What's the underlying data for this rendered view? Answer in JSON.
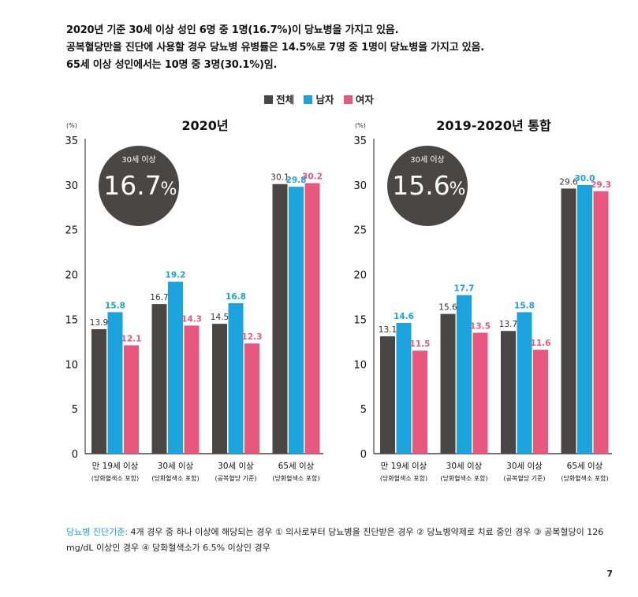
{
  "intro": {
    "line1": "2020년 기준 30세 이상 성인 6명 중 1명(16.7%)이 당뇨병을 가지고 있음.",
    "line2": "공복혈당만을 진단에 사용할 경우 당뇨병 유병률은 14.5%로 7명 중 1명이 당뇨병을 가지고 있음.",
    "line3": "65세 이상 성인에서는 10명 중 3명(30.1%)임."
  },
  "legend": [
    {
      "label": "전체",
      "color": "#4a4646"
    },
    {
      "label": "남자",
      "color": "#1ba3dd"
    },
    {
      "label": "여자",
      "color": "#e8577e"
    }
  ],
  "chart_data": [
    {
      "type": "bar",
      "title": "2020년",
      "ylabel": "(%)",
      "ylim": [
        0,
        35
      ],
      "yticks": [
        0,
        5,
        10,
        15,
        20,
        25,
        30,
        35
      ],
      "grid": false,
      "legend_position": "top-center",
      "highlight": {
        "label": "30세 이상",
        "value": "16.7",
        "unit": "%"
      },
      "categories": [
        {
          "label": "만 19세 이상",
          "sub": "(당화혈색소 포함)"
        },
        {
          "label": "30세 이상",
          "sub": "(당화혈색소 포함)"
        },
        {
          "label": "30세 이상",
          "sub": "(공복혈당 기준)"
        },
        {
          "label": "65세 이상",
          "sub": "(당화혈색소 포함)"
        }
      ],
      "series": [
        {
          "name": "전체",
          "color": "#4a4646",
          "label_color": "#333333",
          "values": [
            13.9,
            16.7,
            14.5,
            30.1
          ]
        },
        {
          "name": "남자",
          "color": "#1ba3dd",
          "label_color": "#1ba3dd",
          "values": [
            15.8,
            19.2,
            16.8,
            29.8
          ]
        },
        {
          "name": "여자",
          "color": "#e8577e",
          "label_color": "#e8577e",
          "values": [
            12.1,
            14.3,
            12.3,
            30.2
          ]
        }
      ]
    },
    {
      "type": "bar",
      "title": "2019-2020년 통합",
      "ylabel": "(%)",
      "ylim": [
        0,
        35
      ],
      "yticks": [
        0,
        5,
        10,
        15,
        20,
        25,
        30,
        35
      ],
      "grid": false,
      "legend_position": "top-center",
      "highlight": {
        "label": "30세 이상",
        "value": "15.6",
        "unit": "%"
      },
      "categories": [
        {
          "label": "만 19세 이상",
          "sub": "(당화혈색소 포함)"
        },
        {
          "label": "30세 이상",
          "sub": "(당화혈색소 포함)"
        },
        {
          "label": "30세 이상",
          "sub": "(공복혈당 기준)"
        },
        {
          "label": "65세 이상",
          "sub": "(당화혈색소 포함)"
        }
      ],
      "series": [
        {
          "name": "전체",
          "color": "#4a4646",
          "label_color": "#333333",
          "values": [
            13.1,
            15.6,
            13.7,
            29.6
          ]
        },
        {
          "name": "남자",
          "color": "#1ba3dd",
          "label_color": "#1ba3dd",
          "values": [
            14.6,
            17.7,
            15.8,
            30.0
          ]
        },
        {
          "name": "여자",
          "color": "#e8577e",
          "label_color": "#e8577e",
          "values": [
            11.5,
            13.5,
            11.6,
            29.3
          ]
        }
      ]
    }
  ],
  "footnote": {
    "label": "당뇨병 진단기준:",
    "text": " 4개 경우 중 하나 이상에 해당되는 경우 ① 의사로부터 당뇨병을 진단받은 경우 ② 당뇨병약제로 치료 중인 경우 ③ 공복혈당이 126 mg/dL 이상인 경우 ④ 당화혈색소가 6.5% 이상인 경우"
  },
  "page_number": "7"
}
